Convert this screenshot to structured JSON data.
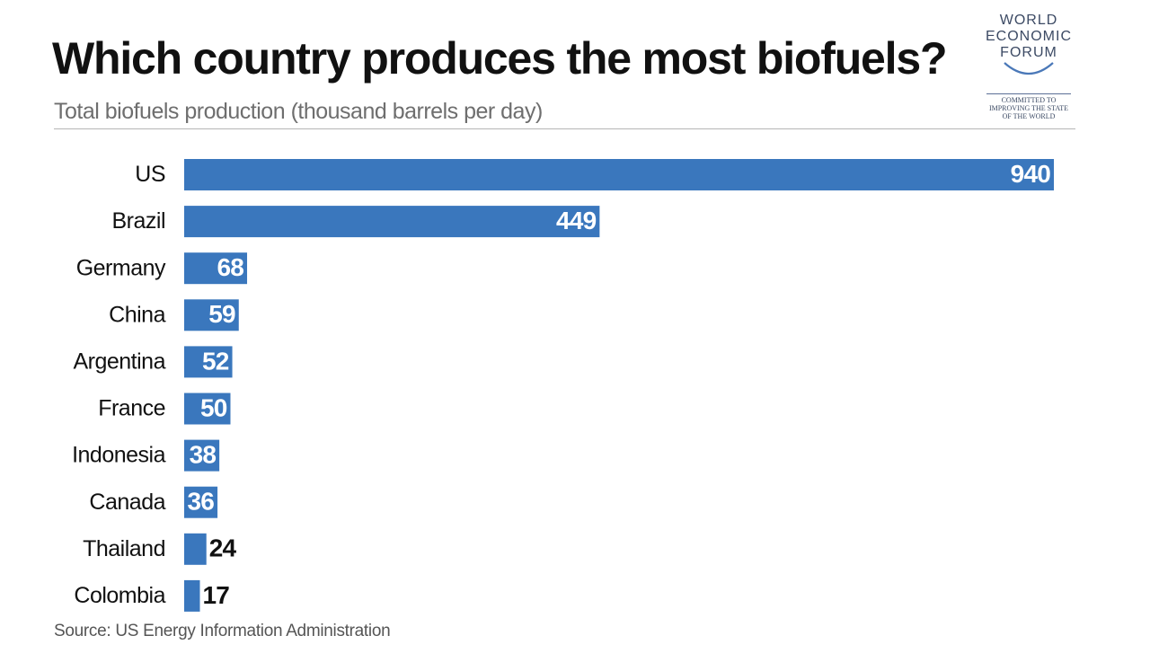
{
  "header": {
    "title": "Which country produces the most biofuels?",
    "subtitle": "Total biofuels production (thousand barrels per day)"
  },
  "logo": {
    "lines": [
      "WORLD",
      "ECONOMIC",
      "FORUM"
    ],
    "tagline": [
      "COMMITTED TO",
      "IMPROVING THE STATE",
      "OF THE WORLD"
    ]
  },
  "footer": {
    "source": "Source: US Energy Information Administration"
  },
  "colors": {
    "bar": "#3a77bd",
    "label_inside": "#ffffff",
    "label_outside": "#111111",
    "category_text": "#111111"
  },
  "chart_data": {
    "type": "bar",
    "orientation": "horizontal",
    "title": "Which country produces the most biofuels?",
    "subtitle": "Total biofuels production (thousand barrels per day)",
    "categories": [
      "US",
      "Brazil",
      "Germany",
      "China",
      "Argentina",
      "France",
      "Indonesia",
      "Canada",
      "Thailand",
      "Colombia"
    ],
    "values": [
      940,
      449,
      68,
      59,
      52,
      50,
      38,
      36,
      24,
      17
    ],
    "xlabel": "",
    "ylabel": "",
    "xlim": [
      0,
      940
    ],
    "grid": false,
    "legend": "none",
    "data_labels": true
  }
}
